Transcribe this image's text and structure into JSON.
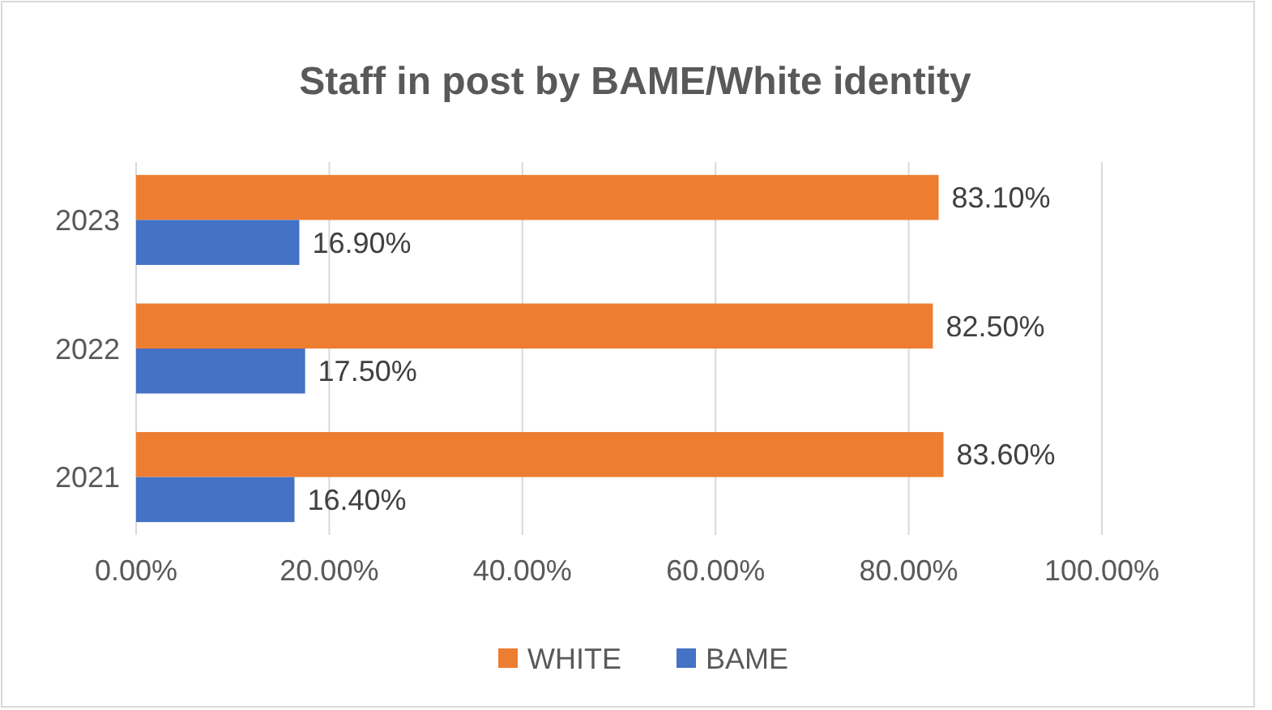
{
  "chart_data": {
    "type": "bar",
    "orientation": "horizontal",
    "title": "Staff in post by BAME/White identity",
    "categories": [
      "2023",
      "2022",
      "2021"
    ],
    "series": [
      {
        "name": "WHITE",
        "color": "#ed7d31",
        "values": [
          83.1,
          82.5,
          83.6
        ],
        "value_labels": [
          "83.10%",
          "82.50%",
          "83.60%"
        ]
      },
      {
        "name": "BAME",
        "color": "#4472c4",
        "values": [
          16.9,
          17.5,
          16.4
        ],
        "value_labels": [
          "16.90%",
          "17.50%",
          "16.40%"
        ]
      }
    ],
    "xlim": [
      0,
      100
    ],
    "xticks": [
      {
        "value": 0,
        "label": "0.00%"
      },
      {
        "value": 20,
        "label": "20.00%"
      },
      {
        "value": 40,
        "label": "40.00%"
      },
      {
        "value": 60,
        "label": "60.00%"
      },
      {
        "value": 80,
        "label": "80.00%"
      },
      {
        "value": 100,
        "label": "100.00%"
      }
    ],
    "grid": "x",
    "legend": "bottom"
  }
}
